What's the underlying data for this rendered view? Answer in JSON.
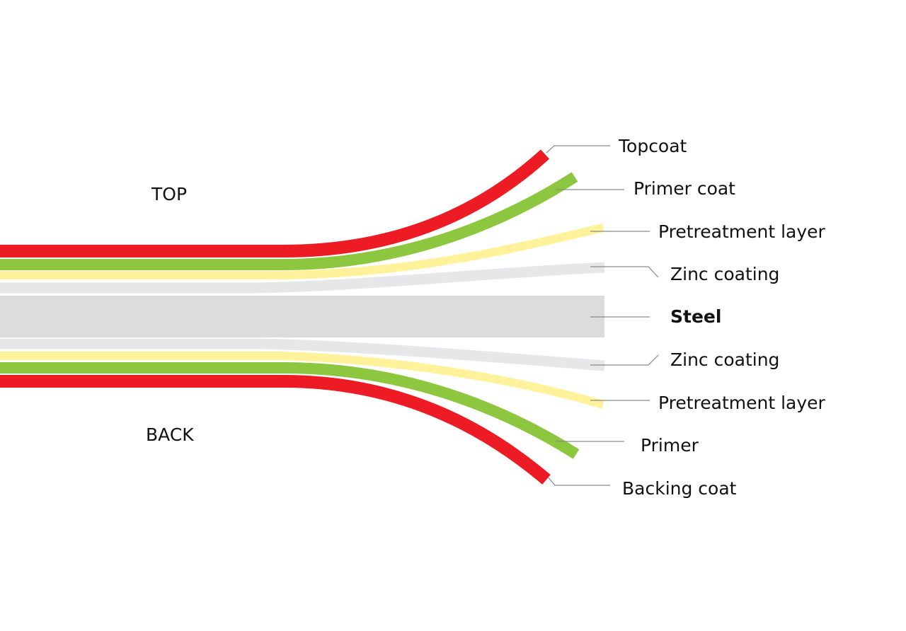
{
  "side_labels": {
    "top": "TOP",
    "back": "BACK"
  },
  "layers": [
    {
      "label": "Topcoat",
      "color": "#ed1c24"
    },
    {
      "label": "Primer coat",
      "color": "#8dc63f"
    },
    {
      "label": "Pretreatment layer",
      "color": "#fff29a"
    },
    {
      "label": "Zinc coating",
      "color": "#e6e7e8"
    },
    {
      "label": "Steel",
      "color": "#dcdcdc"
    },
    {
      "label": "Zinc coating",
      "color": "#e6e7e8"
    },
    {
      "label": "Pretreatment layer",
      "color": "#fff29a"
    },
    {
      "label": "Primer",
      "color": "#8dc63f"
    },
    {
      "label": "Backing coat",
      "color": "#ed1c24"
    }
  ]
}
